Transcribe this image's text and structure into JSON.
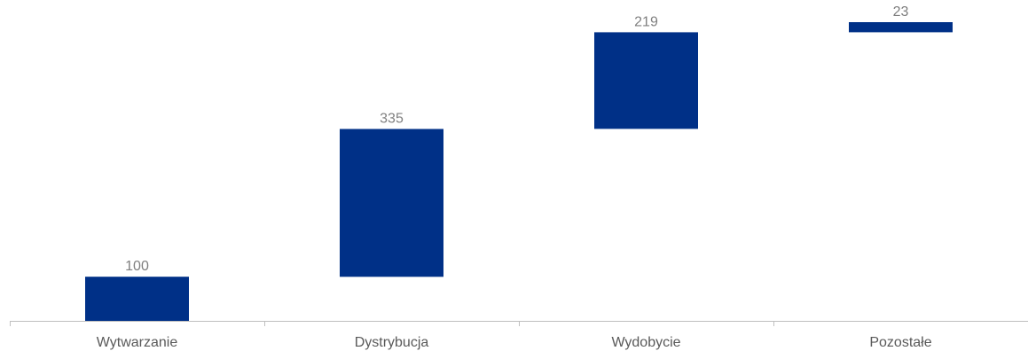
{
  "chart_data": {
    "type": "bar",
    "subtype": "waterfall",
    "categories": [
      "Wytwarzanie",
      "Dystrybucja",
      "Wydobycie",
      "Pozostałe"
    ],
    "values": [
      100,
      335,
      219,
      23
    ],
    "bases": [
      0,
      100,
      435,
      654
    ],
    "data_labels": [
      "100",
      "335",
      "219",
      "23"
    ],
    "title": "",
    "xlabel": "",
    "ylabel": "",
    "ylim": [
      0,
      677
    ],
    "grid": false,
    "legend": "none",
    "colors": {
      "bar": "#003087",
      "axis": "#bfbfbf",
      "value_label": "#7f7f7f",
      "category_label": "#595959"
    }
  }
}
